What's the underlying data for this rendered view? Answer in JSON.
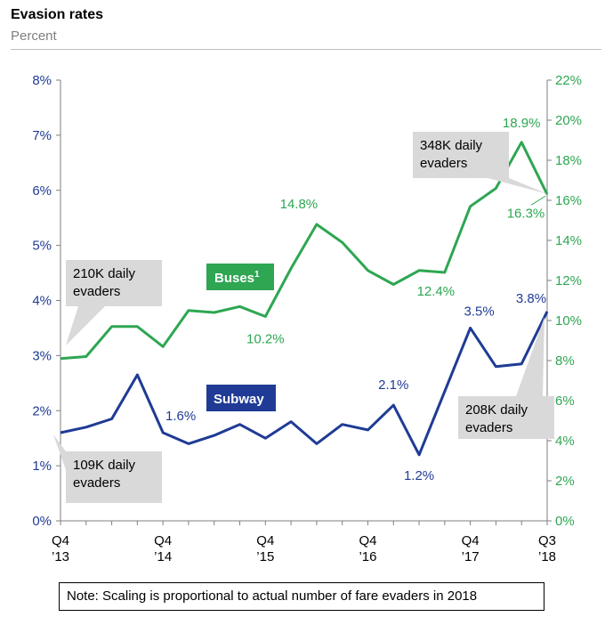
{
  "title": "Evasion rates",
  "subtitle": "Percent",
  "note": "Note: Scaling is proportional to actual number of fare evaders in 2018",
  "colors": {
    "bus": "#2ea652",
    "subway": "#1f3b95",
    "callout": "#d9d9d9",
    "axis": "#7f7f7f"
  },
  "chart_data": {
    "type": "line",
    "title": "Evasion rates",
    "ylabel": "Percent",
    "x_tick_labels": [
      {
        "index": 0,
        "line1": "Q4",
        "line2": "’13"
      },
      {
        "index": 4,
        "line1": "Q4",
        "line2": "’14"
      },
      {
        "index": 8,
        "line1": "Q4",
        "line2": "’15"
      },
      {
        "index": 12,
        "line1": "Q4",
        "line2": "’16"
      },
      {
        "index": 16,
        "line1": "Q4",
        "line2": "’17"
      },
      {
        "index": 19,
        "line1": "Q3",
        "line2": "’18"
      }
    ],
    "y_left": {
      "min": 0,
      "max": 8,
      "step": 1,
      "suffix": "%",
      "ticks": [
        "0%",
        "1%",
        "2%",
        "3%",
        "4%",
        "5%",
        "6%",
        "7%",
        "8%"
      ]
    },
    "y_right": {
      "min": 0,
      "max": 22,
      "step": 2,
      "suffix": "%",
      "ticks": [
        "0%",
        "2%",
        "4%",
        "6%",
        "8%",
        "10%",
        "12%",
        "14%",
        "16%",
        "18%",
        "20%",
        "22%"
      ]
    },
    "series": [
      {
        "name": "Subway",
        "axis": "left",
        "values": [
          1.6,
          1.7,
          1.85,
          2.65,
          1.6,
          1.4,
          1.55,
          1.75,
          1.5,
          1.8,
          1.4,
          1.75,
          1.65,
          2.1,
          1.2,
          3.5,
          2.8,
          2.85,
          3.8
        ],
        "x_index": [
          0,
          1,
          2,
          3,
          4,
          5,
          6,
          7,
          8,
          9,
          10,
          11,
          12,
          13,
          14,
          16,
          17,
          18,
          19
        ]
      },
      {
        "name": "Buses¹",
        "axis": "right",
        "values": [
          8.1,
          8.2,
          9.7,
          9.7,
          8.7,
          10.5,
          10.4,
          10.7,
          10.2,
          12.6,
          14.8,
          13.9,
          12.5,
          11.8,
          12.5,
          12.4,
          15.7,
          16.6,
          18.9,
          16.3
        ],
        "x_index": [
          0,
          1,
          2,
          3,
          4,
          5,
          6,
          7,
          8,
          9,
          10,
          11,
          12,
          13,
          14,
          15,
          16,
          17,
          18,
          19
        ]
      }
    ],
    "data_labels": [
      {
        "series": "Buses¹",
        "text": "14.8%",
        "x_index": 10,
        "value": 14.8
      },
      {
        "series": "Buses¹",
        "text": "10.2%",
        "x_index": 8,
        "value": 10.2
      },
      {
        "series": "Buses¹",
        "text": "12.4%",
        "x_index": 15,
        "value": 12.4
      },
      {
        "series": "Buses¹",
        "text": "18.9%",
        "x_index": 18,
        "value": 18.9
      },
      {
        "series": "Buses¹",
        "text": "16.3%",
        "x_index": 19,
        "value": 16.3
      },
      {
        "series": "Subway",
        "text": "1.6%",
        "x_index": 4,
        "value": 1.6
      },
      {
        "series": "Subway",
        "text": "2.1%",
        "x_index": 13,
        "value": 2.1
      },
      {
        "series": "Subway",
        "text": "1.2%",
        "x_index": 14,
        "value": 1.2
      },
      {
        "series": "Subway",
        "text": "3.5%",
        "x_index": 16,
        "value": 3.5
      },
      {
        "series": "Subway",
        "text": "3.8%",
        "x_index": 19,
        "value": 3.8
      }
    ],
    "series_labels": [
      {
        "text": "Buses",
        "sup": "1",
        "series": "Buses¹"
      },
      {
        "text": "Subway",
        "series": "Subway"
      }
    ],
    "callouts": [
      {
        "line1": "210K daily",
        "line2": "evaders",
        "series": "Buses¹",
        "x_index": 0
      },
      {
        "line1": "348K daily",
        "line2": "evaders",
        "series": "Buses¹",
        "x_index": 19
      },
      {
        "line1": "109K daily",
        "line2": "evaders",
        "series": "Subway",
        "x_index": 0
      },
      {
        "line1": "208K daily",
        "line2": "evaders",
        "series": "Subway",
        "x_index": 19
      }
    ]
  }
}
